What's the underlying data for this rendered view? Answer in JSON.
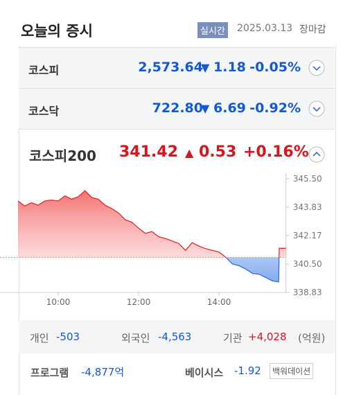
{
  "header": {
    "title": "오늘의 증시",
    "badge": "실시간",
    "date": "2025.03.13",
    "status": "장마감"
  },
  "indices": [
    {
      "name": "코스피",
      "value": "2,573.64",
      "change": "1.18",
      "change_pct": "-0.05%"
    },
    {
      "name": "코스닥",
      "value": "722.80",
      "change": "6.69",
      "change_pct": "-0.92%"
    }
  ],
  "featured": {
    "name": "코스피200",
    "value": "341.42",
    "change": "0.53",
    "change_pct": "+0.16%"
  },
  "chart_data": {
    "type": "line",
    "x": [
      540,
      550,
      560,
      570,
      580,
      590,
      600,
      610,
      620,
      630,
      640,
      650,
      660,
      670,
      680,
      690,
      700,
      710,
      720,
      730,
      740,
      750,
      760,
      770,
      780,
      790,
      800,
      810,
      820,
      830,
      840,
      850,
      860,
      870,
      880,
      890,
      900,
      910,
      920,
      929,
      930,
      940
    ],
    "series": [
      {
        "name": "코스피200",
        "color": "#e8262e",
        "values": [
          344.2,
          343.9,
          344.1,
          343.95,
          344.2,
          344.25,
          344.2,
          344.5,
          344.3,
          344.45,
          344.8,
          344.4,
          344.3,
          343.95,
          343.75,
          343.5,
          343.1,
          342.95,
          342.6,
          342.3,
          342.4,
          342.1,
          342.0,
          341.85,
          341.7,
          341.3,
          341.75,
          341.55,
          341.4,
          341.3,
          341.2,
          340.9,
          340.5,
          340.4,
          340.2,
          339.95,
          339.9,
          339.7,
          339.5,
          339.45,
          341.42,
          341.42
        ]
      }
    ],
    "reference": 340.89,
    "below_color": "#2f6fd6",
    "xlim": [
      540,
      940
    ],
    "xticks": [
      {
        "value": 600,
        "label": "10:00"
      },
      {
        "value": 720,
        "label": "12:00"
      },
      {
        "value": 840,
        "label": "14:00"
      }
    ],
    "ylim": [
      338.83,
      345.5
    ],
    "yticks": [
      {
        "value": 345.5,
        "label": "345.50"
      },
      343.83,
      342.17,
      {
        "value": 340.5,
        "label": "340.50"
      },
      338.83
    ]
  },
  "investors": {
    "items": [
      {
        "name": "개인",
        "value": "-503"
      },
      {
        "name": "외국인",
        "value": "-4,563"
      },
      {
        "name": "기관",
        "value": "+4,028"
      }
    ],
    "unit": "(억원)"
  },
  "program": {
    "label": "프로그램",
    "value": "-4,877억",
    "basis_label": "베이시스",
    "basis_value": "-1.92",
    "basis_state": "백워데이션"
  }
}
